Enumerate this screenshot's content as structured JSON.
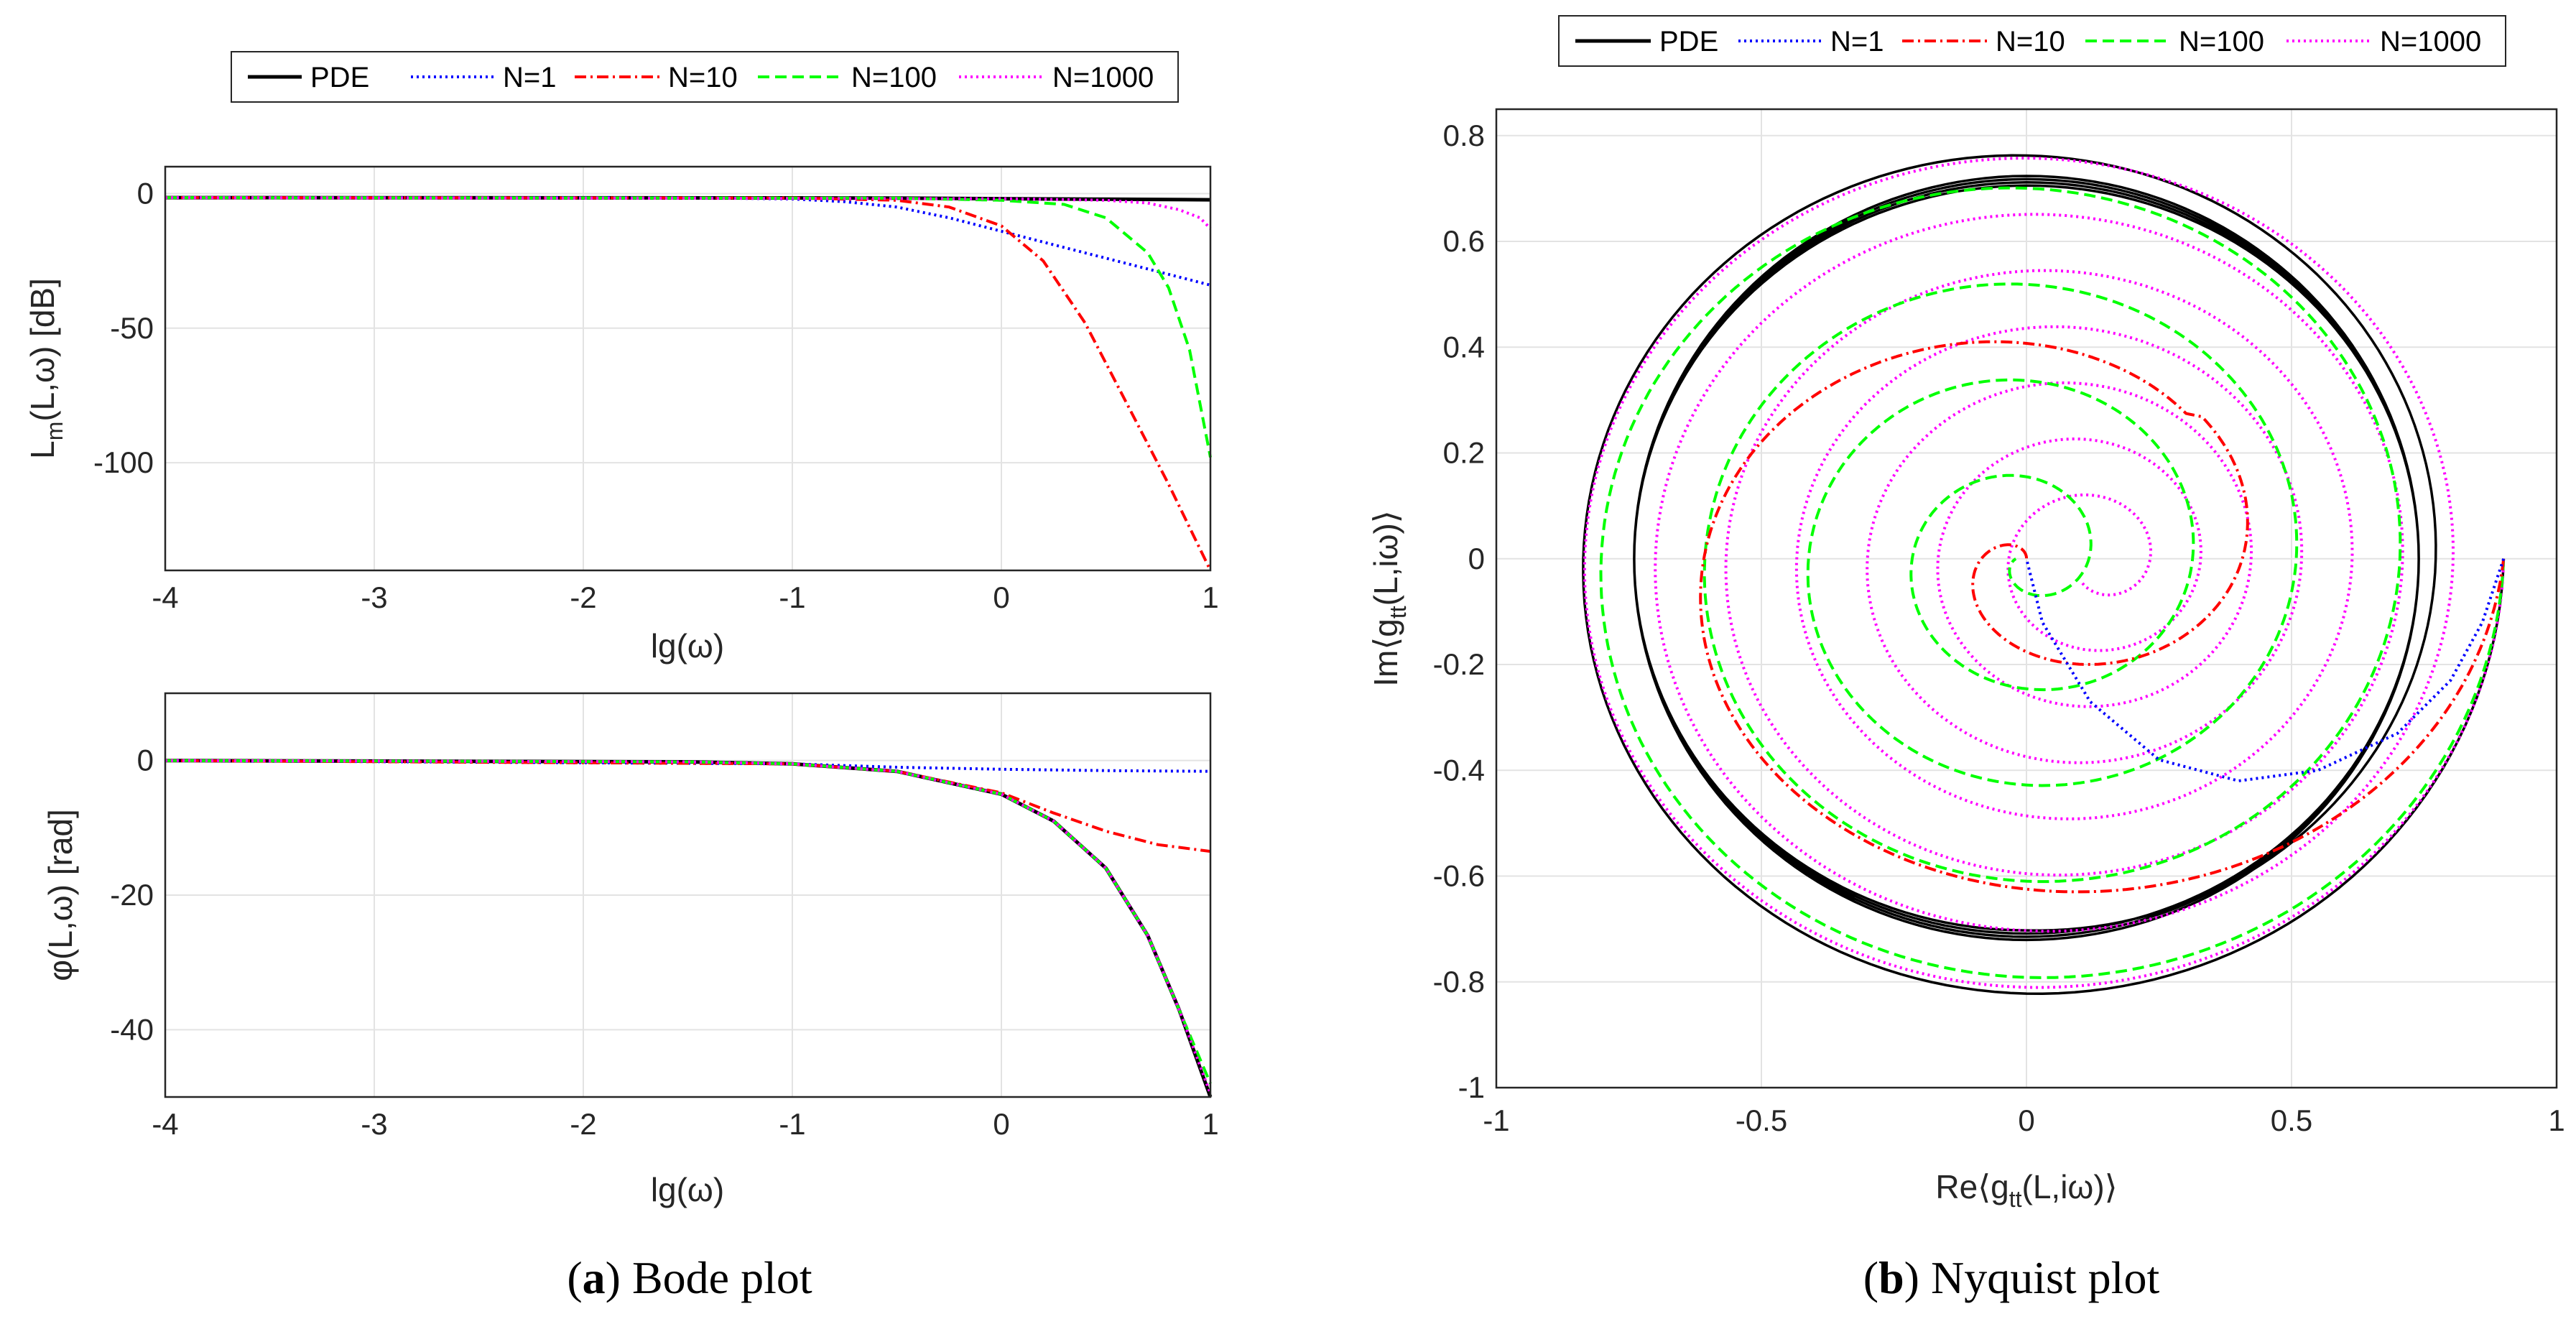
{
  "figure": {
    "caption_a_letter": "a",
    "caption_a_text": " Bode plot",
    "caption_b_letter": "b",
    "caption_b_text": " Nyquist plot"
  },
  "legend_entries": [
    {
      "label": "PDE",
      "color": "#000000",
      "style": "solid"
    },
    {
      "label": "N=1",
      "color": "#0000ff",
      "style": "dotted"
    },
    {
      "label": "N=10",
      "color": "#ff0000",
      "style": "dashdot"
    },
    {
      "label": "N=100",
      "color": "#00ff00",
      "style": "dashed"
    },
    {
      "label": "N=1000",
      "color": "#ff00ff",
      "style": "dotted"
    }
  ],
  "chart_data": [
    {
      "id": "magnitude",
      "type": "line",
      "title": "",
      "xlabel": "lg(ω)",
      "ylabel": "L_m(L,ω) [dB]",
      "xlim": [
        -4,
        1
      ],
      "ylim": [
        -140,
        10
      ],
      "xticks": [
        -4,
        -3,
        -2,
        -1,
        0,
        1
      ],
      "xtick_labels": [
        "-4",
        "-3",
        "-2",
        "-1",
        "0",
        "1"
      ],
      "yticks": [
        0,
        -50,
        -100
      ],
      "ytick_labels": [
        "0",
        "-50",
        "-100"
      ],
      "grid": true,
      "series": [
        {
          "name": "PDE",
          "x": [
            -4,
            -1,
            -0.5,
            0,
            0.5,
            1
          ],
          "y": [
            -1.5,
            -1.6,
            -1.7,
            -1.9,
            -2.1,
            -2.3
          ]
        },
        {
          "name": "N=1",
          "x": [
            -4,
            -1.5,
            -1,
            -0.75,
            -0.5,
            -0.25,
            0,
            0.25,
            0.5,
            0.75,
            1
          ],
          "y": [
            -1.5,
            -1.5,
            -2,
            -3,
            -5,
            -9,
            -14,
            -19,
            -24,
            -29,
            -34
          ]
        },
        {
          "name": "N=10",
          "x": [
            -4,
            -1,
            -0.5,
            -0.25,
            0,
            0.2,
            0.4,
            0.6,
            0.8,
            1
          ],
          "y": [
            -1.5,
            -1.6,
            -2.5,
            -5,
            -12,
            -25,
            -48,
            -78,
            -108,
            -140
          ]
        },
        {
          "name": "N=100",
          "x": [
            -4,
            -0.5,
            0,
            0.3,
            0.5,
            0.7,
            0.8,
            0.9,
            1
          ],
          "y": [
            -1.5,
            -1.7,
            -2.5,
            -4,
            -9,
            -22,
            -35,
            -58,
            -98
          ]
        },
        {
          "name": "N=1000",
          "x": [
            -4,
            0,
            0.5,
            0.7,
            0.85,
            0.95,
            1
          ],
          "y": [
            -1.5,
            -1.9,
            -2.5,
            -3.5,
            -6,
            -9,
            -13
          ]
        }
      ]
    },
    {
      "id": "phase",
      "type": "line",
      "title": "",
      "xlabel": "lg(ω)",
      "ylabel": "φ(L,ω) [rad]",
      "xlim": [
        -4,
        1
      ],
      "ylim": [
        -50,
        10
      ],
      "xticks": [
        -4,
        -3,
        -2,
        -1,
        0,
        1
      ],
      "xtick_labels": [
        "-4",
        "-3",
        "-2",
        "-1",
        "0",
        "1"
      ],
      "yticks": [
        0,
        -20,
        -40
      ],
      "ytick_labels": [
        "0",
        "-20",
        "-40"
      ],
      "grid": true,
      "series": [
        {
          "name": "PDE",
          "x": [
            -4,
            -1.5,
            -1,
            -0.5,
            0,
            0.25,
            0.5,
            0.7,
            0.85,
            1
          ],
          "y": [
            0,
            -0.2,
            -0.5,
            -1.6,
            -5,
            -9,
            -16,
            -26,
            -37,
            -50
          ]
        },
        {
          "name": "N=1",
          "x": [
            -4,
            -1,
            -0.5,
            0,
            0.5,
            1
          ],
          "y": [
            0,
            -0.5,
            -1,
            -1.3,
            -1.5,
            -1.6
          ]
        },
        {
          "name": "N=10",
          "x": [
            -4,
            -1,
            -0.5,
            0,
            0.25,
            0.5,
            0.75,
            1
          ],
          "y": [
            0,
            -0.5,
            -1.6,
            -4.8,
            -7.8,
            -10.5,
            -12.5,
            -13.5
          ]
        },
        {
          "name": "N=100",
          "x": [
            -4,
            -1.5,
            -1,
            -0.5,
            0,
            0.25,
            0.5,
            0.7,
            0.85,
            1
          ],
          "y": [
            0,
            -0.2,
            -0.5,
            -1.6,
            -5,
            -9,
            -16,
            -26,
            -37,
            -48
          ]
        },
        {
          "name": "N=1000",
          "x": [
            -4,
            -1.5,
            -1,
            -0.5,
            0,
            0.25,
            0.5,
            0.7,
            0.85,
            1
          ],
          "y": [
            0,
            -0.2,
            -0.5,
            -1.6,
            -5,
            -9,
            -16,
            -26,
            -37,
            -49.5
          ]
        }
      ]
    },
    {
      "id": "nyquist",
      "type": "line",
      "title": "",
      "xlabel": "Re⟨g_tt(L,iω)⟩",
      "ylabel": "Im⟨g_tt(L,iω)⟩",
      "xlim": [
        -1,
        1
      ],
      "ylim": [
        -1,
        0.85
      ],
      "xticks": [
        -1,
        -0.5,
        0,
        0.5,
        1
      ],
      "xtick_labels": [
        "-1",
        "-0.5",
        "0",
        "0.5",
        "1"
      ],
      "yticks": [
        0.8,
        0.6,
        0.4,
        0.2,
        0,
        -0.2,
        -0.4,
        -0.6,
        -0.8,
        -1
      ],
      "ytick_labels": [
        "0.8",
        "0.6",
        "0.4",
        "0.2",
        "0",
        "-0.2",
        "-0.4",
        "-0.6",
        "-0.8",
        "-1"
      ],
      "grid": true,
      "series": [
        {
          "name": "PDE",
          "start": [
            0.9,
            0.0
          ],
          "form": "near-circular spiral",
          "radius_range": [
            0.74,
            0.82
          ],
          "turns": 5
        },
        {
          "name": "N=1",
          "x": [
            0.9,
            0.86,
            0.8,
            0.7,
            0.55,
            0.4,
            0.25,
            0.12,
            0.03,
            0.0
          ],
          "y": [
            0.0,
            -0.12,
            -0.23,
            -0.33,
            -0.4,
            -0.42,
            -0.38,
            -0.27,
            -0.12,
            0.0
          ]
        },
        {
          "name": "N=10",
          "start": [
            0.9,
            0.0
          ],
          "end": [
            0.0,
            -0.02
          ],
          "form": "inward spiral",
          "turns": 1.7
        },
        {
          "name": "N=100",
          "start": [
            0.9,
            0.0
          ],
          "end": [
            0.0,
            -0.02
          ],
          "form": "inward spiral",
          "turns": 4.5
        },
        {
          "name": "N=1000",
          "start": [
            0.9,
            0.0
          ],
          "end": [
            0.19,
            0.07
          ],
          "form": "inward spiral",
          "turns": 7.5
        }
      ]
    }
  ]
}
